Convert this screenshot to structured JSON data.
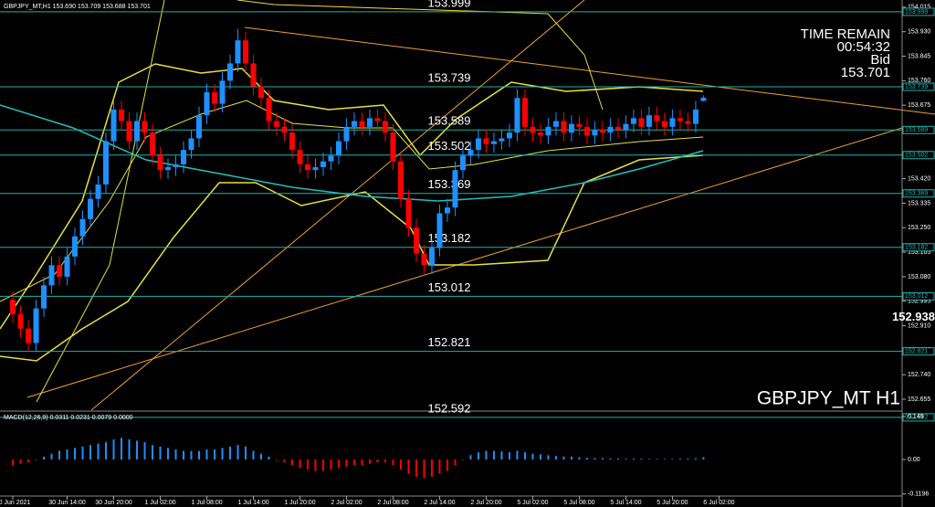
{
  "chart_data": [
    {
      "type": "candlestick",
      "title": "GBPJPY_MT,H1 153.690 153.709 153.688 153.701",
      "time_label": "TIME REMAIN",
      "time_remaining": "00:54:32",
      "price_label": "Bid",
      "bid": 153.701,
      "watermark": "GBPJPY_MT H1",
      "highlight_price": 152.938,
      "up_color": "#1e90ff",
      "down_color": "#ff0000",
      "level_color": "#20b2aa",
      "levels": [
        153.999,
        153.739,
        153.589,
        153.502,
        153.369,
        153.182,
        153.012,
        152.821,
        152.592
      ],
      "opens": [
        153.0,
        152.95,
        152.9,
        152.85,
        152.97,
        153.05,
        153.12,
        153.08,
        153.15,
        153.22,
        153.28,
        153.35,
        153.4,
        153.55,
        153.66,
        153.62,
        153.55,
        153.62,
        153.58,
        153.5,
        153.45,
        153.46,
        153.47,
        153.52,
        153.56,
        153.64,
        153.72,
        153.68,
        153.76,
        153.82,
        153.9,
        153.82,
        153.74,
        153.7,
        153.62,
        153.6,
        153.58,
        153.52,
        153.47,
        153.45,
        153.46,
        153.48,
        153.5,
        153.55,
        153.6,
        153.62,
        153.6,
        153.63,
        153.62,
        153.58,
        153.48,
        153.35,
        153.25,
        153.16,
        153.12,
        153.18,
        153.3,
        153.32,
        153.45,
        153.5,
        153.52,
        153.56,
        153.54,
        153.55,
        153.56,
        153.58,
        153.7,
        153.6,
        153.58,
        153.57,
        153.6,
        153.62,
        153.58,
        153.61,
        153.6,
        153.57,
        153.59,
        153.58,
        153.6,
        153.59,
        153.61,
        153.63,
        153.6,
        153.64,
        153.62,
        153.6,
        153.63,
        153.62,
        153.61,
        153.69
      ],
      "highs": [
        153.03,
        152.98,
        152.93,
        153.0,
        153.08,
        153.15,
        153.15,
        153.18,
        153.25,
        153.31,
        153.38,
        153.43,
        153.58,
        153.69,
        153.69,
        153.65,
        153.65,
        153.65,
        153.61,
        153.53,
        153.49,
        153.5,
        153.55,
        153.59,
        153.67,
        153.75,
        153.75,
        153.79,
        153.85,
        153.94,
        153.93,
        153.85,
        153.77,
        153.73,
        153.65,
        153.63,
        153.61,
        153.55,
        153.5,
        153.49,
        153.51,
        153.53,
        153.58,
        153.63,
        153.65,
        153.65,
        153.66,
        153.66,
        153.65,
        153.61,
        153.51,
        153.38,
        153.28,
        153.19,
        153.21,
        153.33,
        153.35,
        153.48,
        153.53,
        153.55,
        153.59,
        153.59,
        153.58,
        153.59,
        153.61,
        153.73,
        153.73,
        153.63,
        153.61,
        153.63,
        153.65,
        153.65,
        153.64,
        153.64,
        153.63,
        153.62,
        153.62,
        153.63,
        153.63,
        153.64,
        153.66,
        153.66,
        153.67,
        153.67,
        153.65,
        153.66,
        153.66,
        153.65,
        153.69,
        153.709
      ],
      "lows": [
        152.92,
        152.87,
        152.82,
        152.82,
        152.94,
        153.02,
        153.05,
        153.05,
        153.12,
        153.19,
        153.25,
        153.32,
        153.37,
        153.52,
        153.59,
        153.52,
        153.52,
        153.55,
        153.47,
        153.42,
        153.42,
        153.43,
        153.44,
        153.49,
        153.53,
        153.61,
        153.65,
        153.65,
        153.73,
        153.79,
        153.79,
        153.71,
        153.67,
        153.59,
        153.57,
        153.55,
        153.49,
        153.44,
        153.42,
        153.42,
        153.43,
        153.45,
        153.47,
        153.52,
        153.57,
        153.57,
        153.57,
        153.59,
        153.55,
        153.45,
        153.32,
        153.22,
        153.13,
        153.09,
        153.09,
        153.15,
        153.27,
        153.29,
        153.42,
        153.47,
        153.49,
        153.51,
        153.51,
        153.52,
        153.53,
        153.55,
        153.57,
        153.55,
        153.54,
        153.54,
        153.57,
        153.55,
        153.55,
        153.57,
        153.54,
        153.54,
        153.55,
        153.55,
        153.56,
        153.56,
        153.58,
        153.57,
        153.57,
        153.59,
        153.57,
        153.57,
        153.59,
        153.58,
        153.58,
        153.688
      ],
      "closes": [
        152.95,
        152.9,
        152.85,
        152.97,
        153.05,
        153.12,
        153.08,
        153.15,
        153.22,
        153.28,
        153.35,
        153.4,
        153.55,
        153.66,
        153.62,
        153.55,
        153.62,
        153.58,
        153.5,
        153.45,
        153.46,
        153.47,
        153.52,
        153.56,
        153.64,
        153.72,
        153.68,
        153.76,
        153.82,
        153.9,
        153.82,
        153.74,
        153.7,
        153.62,
        153.6,
        153.58,
        153.52,
        153.47,
        153.45,
        153.46,
        153.48,
        153.5,
        153.55,
        153.6,
        153.62,
        153.6,
        153.63,
        153.62,
        153.58,
        153.48,
        153.35,
        153.25,
        153.16,
        153.12,
        153.18,
        153.3,
        153.32,
        153.45,
        153.5,
        153.52,
        153.56,
        153.54,
        153.55,
        153.56,
        153.58,
        153.7,
        153.6,
        153.58,
        153.57,
        153.6,
        153.62,
        153.58,
        153.61,
        153.6,
        153.57,
        153.59,
        153.58,
        153.6,
        153.59,
        153.61,
        153.63,
        153.6,
        153.64,
        153.62,
        153.6,
        153.63,
        153.62,
        153.61,
        153.66,
        153.701
      ],
      "xlim": [
        -1.65,
        114.6
      ],
      "xticks": [
        {
          "value": 0,
          "label": "30 Jun 2021"
        },
        {
          "value": 7,
          "label": "30 Jun 14:00"
        },
        {
          "value": 13,
          "label": "30 Jun 20:00"
        },
        {
          "value": 19,
          "label": "1 Jul 02:00"
        },
        {
          "value": 25,
          "label": "1 Jul 08:00"
        },
        {
          "value": 31,
          "label": "1 Jul 14:00"
        },
        {
          "value": 37,
          "label": "1 Jul 20:00"
        },
        {
          "value": 43,
          "label": "2 Jul 02:00"
        },
        {
          "value": 49,
          "label": "2 Jul 08:00"
        },
        {
          "value": 55,
          "label": "2 Jul 14:00"
        },
        {
          "value": 61,
          "label": "2 Jul 20:00"
        },
        {
          "value": 67,
          "label": "5 Jul 02:00"
        },
        {
          "value": 73,
          "label": "5 Jul 08:00"
        },
        {
          "value": 79,
          "label": "5 Jul 14:00"
        },
        {
          "value": 85,
          "label": "5 Jul 20:00"
        },
        {
          "value": 91,
          "label": "6 Jul 02:00"
        }
      ],
      "ylim": [
        152.617,
        154.04
      ],
      "yticks": [
        154.015,
        {
          "value": 153.93,
          "label": "153.930"
        },
        153.845,
        {
          "value": 153.76,
          "label": "153.760"
        },
        153.675,
        {
          "value": 153.59,
          "label": "153.590"
        },
        153.505,
        {
          "value": 153.42,
          "label": "153.420"
        },
        153.335,
        {
          "value": 153.25,
          "label": "153.250"
        },
        153.165,
        {
          "value": 153.08,
          "label": "153.080"
        },
        152.995,
        {
          "value": 152.91,
          "label": "152.910"
        },
        152.825,
        {
          "value": 152.74,
          "label": "152.740"
        },
        152.655
      ]
    },
    {
      "type": "bar",
      "title": "MACD(12,26,9) 0.0311 0.0231 0.0079 0.0000",
      "color": "#1e90ff",
      "negative_color": "#ff0000",
      "values": [
        -0.02,
        -0.015,
        -0.01,
        0.0,
        0.01,
        0.02,
        0.03,
        0.035,
        0.04,
        0.045,
        0.05,
        0.055,
        0.06,
        0.07,
        0.075,
        0.07,
        0.065,
        0.06,
        0.05,
        0.045,
        0.04,
        0.035,
        0.03,
        0.03,
        0.03,
        0.035,
        0.035,
        0.04,
        0.045,
        0.05,
        0.045,
        0.03,
        0.02,
        0.01,
        0.0,
        -0.01,
        -0.02,
        -0.03,
        -0.035,
        -0.04,
        -0.04,
        -0.035,
        -0.03,
        -0.025,
        -0.02,
        -0.02,
        -0.015,
        -0.01,
        -0.01,
        -0.02,
        -0.035,
        -0.05,
        -0.06,
        -0.065,
        -0.06,
        -0.05,
        -0.04,
        -0.02,
        0.0,
        0.015,
        0.025,
        0.03,
        0.03,
        0.028,
        0.025,
        0.03,
        0.025,
        0.02,
        0.018,
        0.015,
        0.012,
        0.01,
        0.01,
        0.008,
        0.006,
        0.005,
        0.005,
        0.004,
        0.004,
        0.003,
        0.003,
        0.003,
        0.002,
        0.002,
        0.002,
        0.002,
        0.003,
        0.003,
        0.004,
        0.008
      ],
      "ylim": [
        -0.1649,
        0.1617
      ],
      "yticks": [
        0.149,
        {
          "value": 0,
          "label": "0.00"
        },
        -0.1196
      ]
    }
  ]
}
